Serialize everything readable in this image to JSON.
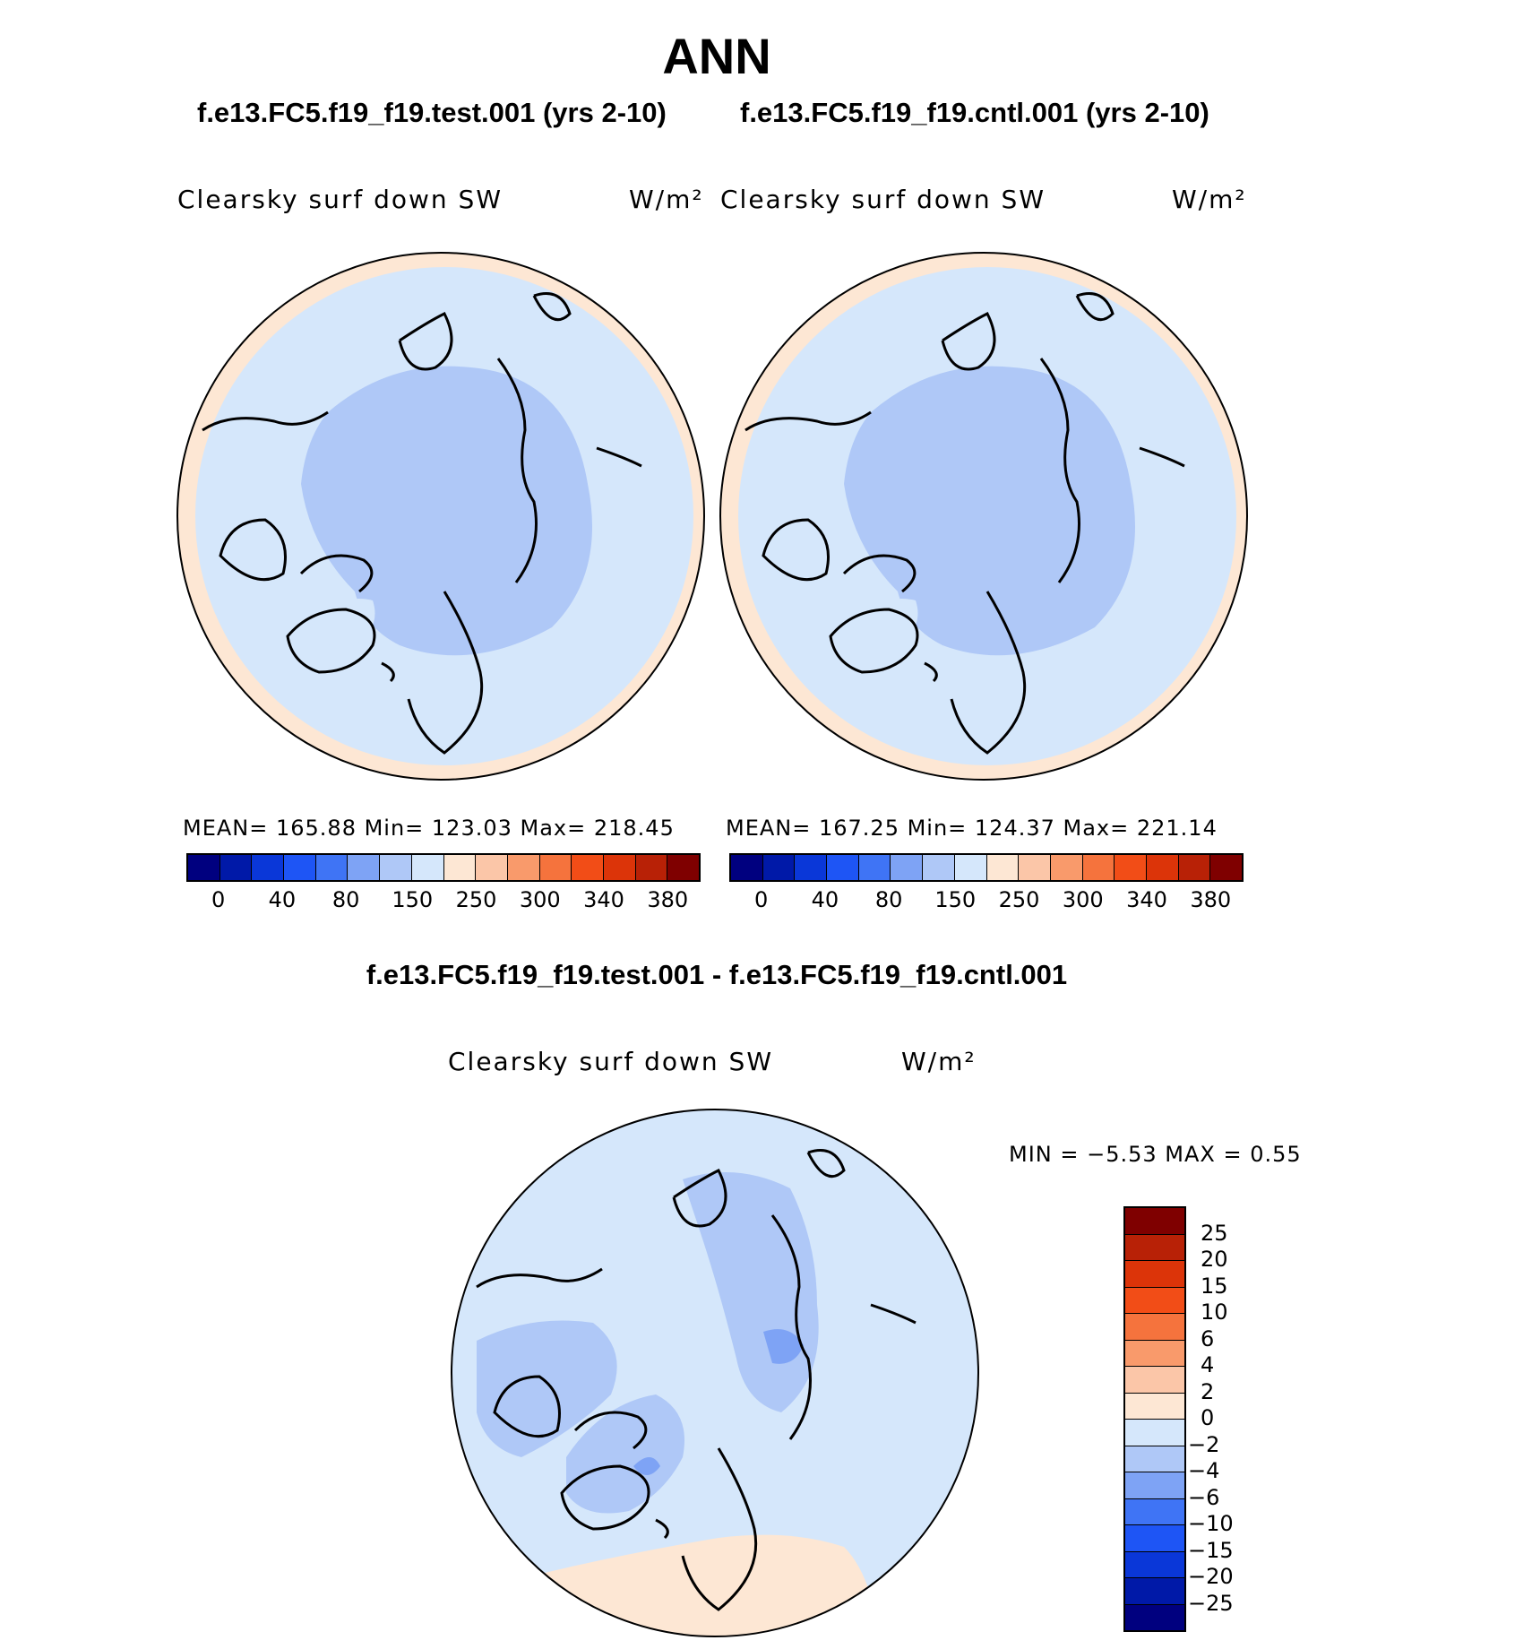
{
  "title": "ANN",
  "panels": {
    "left": {
      "title": "f.e13.FC5.f19_f19.test.001 (yrs 2-10)",
      "variable": "Clearsky surf down SW",
      "units": "W/m²",
      "stats": "MEAN=  165.88   Min=  123.03    Max=  218.45"
    },
    "right": {
      "title": "f.e13.FC5.f19_f19.cntl.001 (yrs 2-10)",
      "variable": "Clearsky surf down SW",
      "units": "W/m²",
      "stats": "MEAN=  167.25   Min=  124.37    Max=  221.14"
    },
    "diff": {
      "title": "f.e13.FC5.f19_f19.test.001 - f.e13.FC5.f19_f19.cntl.001",
      "variable": "Clearsky surf down SW",
      "units": "W/m²",
      "minmax": "MIN  =    −5.53  MAX  =     0.55"
    }
  },
  "chart_data": [
    {
      "type": "heatmap",
      "projection": "north-polar-stereographic",
      "title": "f.e13.FC5.f19_f19.test.001 (yrs 2-10)",
      "variable": "Clearsky surf down SW",
      "units": "W/m²",
      "mean": 165.88,
      "min": 123.03,
      "max": 218.45,
      "colorbar_ticks": [
        "0",
        "40",
        "80",
        "150",
        "250",
        "300",
        "340",
        "380"
      ]
    },
    {
      "type": "heatmap",
      "projection": "north-polar-stereographic",
      "title": "f.e13.FC5.f19_f19.cntl.001 (yrs 2-10)",
      "variable": "Clearsky surf down SW",
      "units": "W/m²",
      "mean": 167.25,
      "min": 124.37,
      "max": 221.14,
      "colorbar_ticks": [
        "0",
        "40",
        "80",
        "150",
        "250",
        "300",
        "340",
        "380"
      ]
    },
    {
      "type": "heatmap",
      "projection": "north-polar-stereographic",
      "title": "f.e13.FC5.f19_f19.test.001 - f.e13.FC5.f19_f19.cntl.001",
      "variable": "Clearsky surf down SW",
      "units": "W/m²",
      "min": -5.53,
      "max": 0.55,
      "colorbar_ticks": [
        "25",
        "20",
        "15",
        "10",
        "6",
        "4",
        "2",
        "0",
        "−2",
        "−4",
        "−6",
        "−10",
        "−15",
        "−20",
        "−25"
      ]
    }
  ],
  "colors": {
    "abs_scale": [
      "#00007f",
      "#0019a8",
      "#0a37d8",
      "#1e55f5",
      "#3f74f5",
      "#7ea3f5",
      "#afc8f7",
      "#d5e7fb",
      "#fde7d4",
      "#fbc6a8",
      "#f99a6b",
      "#f5733d",
      "#f24d17",
      "#dc3409",
      "#b82106",
      "#7f0000"
    ],
    "diff_scale": [
      "#7f0000",
      "#b82106",
      "#dc3409",
      "#f24d17",
      "#f5733d",
      "#f99a6b",
      "#fbc6a8",
      "#fde7d4",
      "#d5e7fb",
      "#afc8f7",
      "#7ea3f5",
      "#3f74f5",
      "#1e55f5",
      "#0a37d8",
      "#0019a8",
      "#00007f"
    ],
    "light_blue": "#d5e7fb",
    "mid_blue": "#afc8f7",
    "blue": "#7ea3f5",
    "peach": "#fde7d4"
  }
}
